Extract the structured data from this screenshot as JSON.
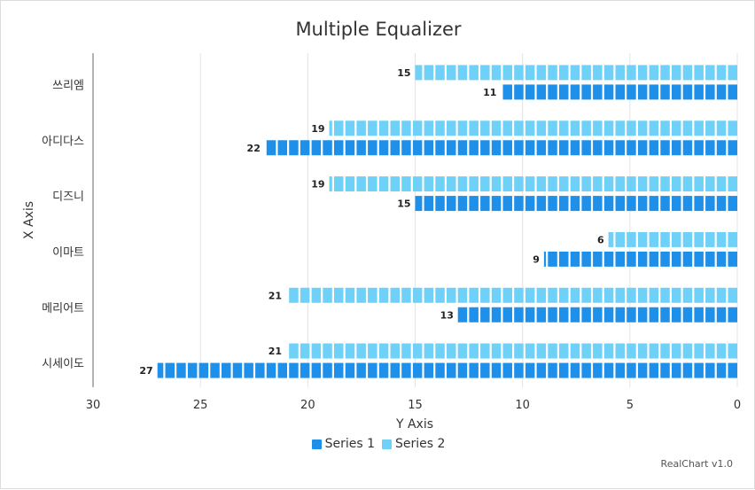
{
  "chart_data": {
    "type": "bar",
    "orientation": "horizontal",
    "title": "Multiple Equalizer",
    "xlabel": "X Axis",
    "ylabel": "Y Axis",
    "categories": [
      "쓰리엠",
      "아디다스",
      "디즈니",
      "이마트",
      "메리어트",
      "시세이도"
    ],
    "series": [
      {
        "name": "Series 1",
        "color": "#1e90ea",
        "values": [
          11,
          22,
          15,
          9,
          13,
          27
        ]
      },
      {
        "name": "Series 2",
        "color": "#6fd0f8",
        "values": [
          15,
          19,
          19,
          6,
          21,
          21
        ]
      }
    ],
    "value_axis": {
      "range": [
        0,
        30
      ],
      "ticks": [
        30,
        25,
        20,
        15,
        10,
        5,
        0
      ],
      "reversed": true
    },
    "style": "equalizer",
    "grid": true,
    "legend_position": "bottom"
  },
  "credit": "RealChart v1.0"
}
